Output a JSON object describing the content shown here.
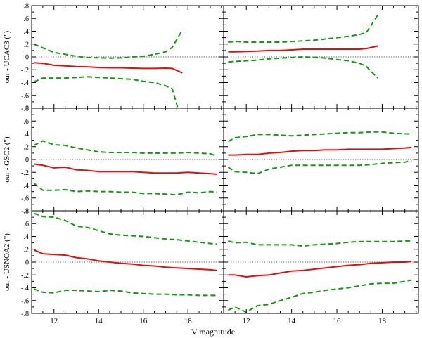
{
  "figure": {
    "xlabel": "V magnitude",
    "ylabel_unit_symbol": "(\")"
  },
  "colors": {
    "median_line": "#dd1111",
    "dispersion_line": "#119911",
    "zero_line": "#555555",
    "frame": "#000000"
  },
  "chart_data": [
    {
      "type": "line",
      "row": 0,
      "col": 0,
      "ylabel": "our - UCAC3 (\")",
      "xlim": [
        11,
        19.6
      ],
      "ylim": [
        -0.8,
        0.8
      ],
      "xticks": [
        12,
        14,
        16,
        18
      ],
      "yticks": [
        -0.8,
        -0.6,
        -0.4,
        -0.2,
        0,
        0.2,
        0.4,
        0.6,
        0.8
      ],
      "series": [
        {
          "role": "median",
          "style": "solid",
          "x": [
            11.1,
            11.5,
            12.0,
            12.5,
            13.0,
            13.5,
            14.0,
            14.5,
            15.0,
            15.5,
            16.0,
            16.5,
            17.0,
            17.3,
            17.75
          ],
          "y": [
            -0.09,
            -0.1,
            -0.13,
            -0.14,
            -0.15,
            -0.155,
            -0.165,
            -0.17,
            -0.17,
            -0.175,
            -0.18,
            -0.18,
            -0.175,
            -0.18,
            -0.25
          ]
        },
        {
          "role": "upper",
          "style": "dashed",
          "x": [
            11.1,
            11.5,
            12.0,
            12.5,
            13.0,
            13.5,
            14.0,
            14.5,
            15.0,
            15.5,
            16.0,
            16.5,
            17.0,
            17.3,
            17.75
          ],
          "y": [
            0.2,
            0.14,
            0.07,
            0.04,
            0.01,
            -0.01,
            -0.015,
            -0.02,
            -0.015,
            0.0,
            0.01,
            0.04,
            0.08,
            0.15,
            0.42
          ]
        },
        {
          "role": "lower",
          "style": "dashed",
          "x": [
            11.1,
            11.5,
            12.0,
            12.5,
            13.0,
            13.5,
            14.0,
            14.5,
            15.0,
            15.5,
            16.0,
            16.5,
            17.0,
            17.3,
            17.55
          ],
          "y": [
            -0.39,
            -0.33,
            -0.33,
            -0.33,
            -0.32,
            -0.31,
            -0.32,
            -0.33,
            -0.34,
            -0.35,
            -0.38,
            -0.4,
            -0.45,
            -0.5,
            -0.8
          ]
        }
      ]
    },
    {
      "type": "line",
      "row": 0,
      "col": 1,
      "xlim": [
        11,
        19.6
      ],
      "ylim": [
        -0.8,
        0.8
      ],
      "xticks": [
        12,
        14,
        16,
        18
      ],
      "series": [
        {
          "role": "median",
          "style": "solid",
          "x": [
            11.2,
            11.5,
            12.0,
            12.5,
            13.0,
            13.5,
            14.0,
            14.5,
            15.0,
            15.5,
            16.0,
            16.5,
            17.0,
            17.3,
            17.8
          ],
          "y": [
            0.08,
            0.08,
            0.085,
            0.09,
            0.1,
            0.1,
            0.11,
            0.12,
            0.12,
            0.12,
            0.12,
            0.12,
            0.12,
            0.13,
            0.17
          ]
        },
        {
          "role": "upper",
          "style": "dashed",
          "x": [
            11.2,
            11.5,
            12.0,
            12.5,
            13.0,
            13.5,
            14.0,
            14.5,
            15.0,
            15.5,
            16.0,
            16.5,
            17.0,
            17.3,
            17.8
          ],
          "y": [
            0.23,
            0.24,
            0.23,
            0.23,
            0.23,
            0.23,
            0.24,
            0.25,
            0.26,
            0.28,
            0.3,
            0.32,
            0.35,
            0.38,
            0.65
          ]
        },
        {
          "role": "lower",
          "style": "dashed",
          "x": [
            11.2,
            11.5,
            12.0,
            12.5,
            13.0,
            13.5,
            14.0,
            14.5,
            15.0,
            15.5,
            16.0,
            16.5,
            17.0,
            17.3,
            17.8
          ],
          "y": [
            -0.08,
            -0.07,
            -0.06,
            -0.05,
            -0.03,
            -0.02,
            -0.01,
            0.0,
            -0.005,
            -0.02,
            -0.04,
            -0.06,
            -0.1,
            -0.15,
            -0.33
          ]
        }
      ]
    },
    {
      "type": "line",
      "row": 1,
      "col": 0,
      "ylabel": "our - GSC2 (\")",
      "xlim": [
        11,
        19.6
      ],
      "ylim": [
        -0.8,
        0.8
      ],
      "xticks": [
        12,
        14,
        16,
        18
      ],
      "yticks": [
        -0.8,
        -0.6,
        -0.4,
        -0.2,
        0,
        0.2,
        0.4,
        0.6,
        0.8
      ],
      "series": [
        {
          "role": "median",
          "style": "solid",
          "x": [
            11.1,
            11.5,
            12.0,
            12.5,
            13.0,
            13.5,
            14.0,
            14.5,
            15.0,
            15.5,
            16.0,
            16.5,
            17.0,
            17.5,
            18.0,
            18.5,
            19.0,
            19.3
          ],
          "y": [
            -0.07,
            -0.09,
            -0.13,
            -0.12,
            -0.16,
            -0.17,
            -0.19,
            -0.19,
            -0.19,
            -0.19,
            -0.2,
            -0.21,
            -0.21,
            -0.21,
            -0.2,
            -0.21,
            -0.22,
            -0.23
          ]
        },
        {
          "role": "upper",
          "style": "dashed",
          "x": [
            11.1,
            11.5,
            12.0,
            12.5,
            13.0,
            13.5,
            14.0,
            14.5,
            15.0,
            15.5,
            16.0,
            16.5,
            17.0,
            17.5,
            18.0,
            18.5,
            19.0,
            19.3
          ],
          "y": [
            0.22,
            0.29,
            0.23,
            0.22,
            0.18,
            0.15,
            0.12,
            0.11,
            0.11,
            0.11,
            0.1,
            0.1,
            0.1,
            0.1,
            0.11,
            0.1,
            0.09,
            0.05
          ]
        },
        {
          "role": "lower",
          "style": "dashed",
          "x": [
            11.1,
            11.5,
            12.0,
            12.5,
            13.0,
            13.5,
            14.0,
            14.5,
            15.0,
            15.5,
            16.0,
            16.5,
            17.0,
            17.5,
            18.0,
            18.5,
            19.0,
            19.3
          ],
          "y": [
            -0.37,
            -0.48,
            -0.48,
            -0.47,
            -0.5,
            -0.49,
            -0.5,
            -0.5,
            -0.51,
            -0.51,
            -0.53,
            -0.53,
            -0.54,
            -0.55,
            -0.51,
            -0.52,
            -0.5,
            -0.51
          ]
        }
      ]
    },
    {
      "type": "line",
      "row": 1,
      "col": 1,
      "xlim": [
        11,
        19.6
      ],
      "ylim": [
        -0.8,
        0.8
      ],
      "xticks": [
        12,
        14,
        16,
        18
      ],
      "series": [
        {
          "role": "median",
          "style": "solid",
          "x": [
            11.2,
            11.5,
            12.0,
            12.5,
            13.0,
            13.5,
            14.0,
            14.5,
            15.0,
            15.5,
            16.0,
            16.5,
            17.0,
            17.5,
            18.0,
            18.5,
            19.0,
            19.3
          ],
          "y": [
            0.07,
            0.07,
            0.08,
            0.08,
            0.1,
            0.11,
            0.13,
            0.14,
            0.14,
            0.15,
            0.15,
            0.16,
            0.16,
            0.16,
            0.16,
            0.17,
            0.18,
            0.19
          ]
        },
        {
          "role": "upper",
          "style": "dashed",
          "x": [
            11.2,
            11.5,
            12.0,
            12.5,
            13.0,
            13.5,
            14.0,
            14.5,
            15.0,
            15.5,
            16.0,
            16.5,
            17.0,
            17.5,
            18.0,
            18.5,
            19.0,
            19.3
          ],
          "y": [
            0.28,
            0.34,
            0.36,
            0.39,
            0.39,
            0.38,
            0.37,
            0.38,
            0.39,
            0.4,
            0.41,
            0.42,
            0.42,
            0.43,
            0.43,
            0.41,
            0.4,
            0.4
          ]
        },
        {
          "role": "lower",
          "style": "dashed",
          "x": [
            11.2,
            11.5,
            12.0,
            12.5,
            13.0,
            13.5,
            14.0,
            14.5,
            15.0,
            15.5,
            16.0,
            16.5,
            17.0,
            17.5,
            18.0,
            18.5,
            19.0,
            19.3
          ],
          "y": [
            -0.12,
            -0.19,
            -0.2,
            -0.22,
            -0.15,
            -0.12,
            -0.09,
            -0.09,
            -0.09,
            -0.09,
            -0.09,
            -0.09,
            -0.09,
            -0.08,
            -0.06,
            -0.05,
            -0.04,
            -0.02
          ]
        }
      ]
    },
    {
      "type": "line",
      "row": 2,
      "col": 0,
      "ylabel": "our - USNOA2 (\")",
      "xlim": [
        11,
        19.6
      ],
      "ylim": [
        -0.8,
        0.8
      ],
      "xticks": [
        12,
        14,
        16,
        18
      ],
      "yticks": [
        -0.8,
        -0.6,
        -0.4,
        -0.2,
        0,
        0.2,
        0.4,
        0.6,
        0.8
      ],
      "series": [
        {
          "role": "median",
          "style": "solid",
          "x": [
            11.1,
            11.5,
            12.0,
            12.5,
            13.0,
            13.5,
            14.0,
            14.5,
            15.0,
            15.5,
            16.0,
            16.5,
            17.0,
            17.5,
            18.0,
            18.5,
            19.0,
            19.3
          ],
          "y": [
            0.19,
            0.13,
            0.12,
            0.11,
            0.07,
            0.05,
            0.02,
            0.0,
            -0.02,
            -0.03,
            -0.05,
            -0.06,
            -0.08,
            -0.09,
            -0.1,
            -0.11,
            -0.12,
            -0.13
          ]
        },
        {
          "role": "upper",
          "style": "dashed",
          "x": [
            11.1,
            11.5,
            12.0,
            12.5,
            13.0,
            13.5,
            14.0,
            14.5,
            15.0,
            15.5,
            16.0,
            16.5,
            17.0,
            17.5,
            18.0,
            18.5,
            19.0,
            19.3
          ],
          "y": [
            0.76,
            0.71,
            0.7,
            0.65,
            0.56,
            0.54,
            0.49,
            0.44,
            0.42,
            0.41,
            0.4,
            0.38,
            0.36,
            0.35,
            0.33,
            0.31,
            0.29,
            0.28
          ]
        },
        {
          "role": "lower",
          "style": "dashed",
          "x": [
            11.1,
            11.5,
            12.0,
            12.5,
            13.0,
            13.5,
            14.0,
            14.5,
            15.0,
            15.5,
            16.0,
            16.5,
            17.0,
            17.5,
            18.0,
            18.5,
            19.0,
            19.3
          ],
          "y": [
            -0.42,
            -0.47,
            -0.48,
            -0.44,
            -0.44,
            -0.45,
            -0.46,
            -0.44,
            -0.45,
            -0.48,
            -0.49,
            -0.5,
            -0.5,
            -0.51,
            -0.51,
            -0.52,
            -0.52,
            -0.52
          ]
        }
      ]
    },
    {
      "type": "line",
      "row": 2,
      "col": 1,
      "xlim": [
        11,
        19.6
      ],
      "ylim": [
        -0.8,
        0.8
      ],
      "xticks": [
        12,
        14,
        16,
        18
      ],
      "series": [
        {
          "role": "median",
          "style": "solid",
          "x": [
            11.2,
            11.5,
            12.0,
            12.5,
            13.0,
            13.5,
            14.0,
            14.5,
            15.0,
            15.5,
            16.0,
            16.5,
            17.0,
            17.5,
            18.0,
            18.5,
            19.0,
            19.3
          ],
          "y": [
            -0.2,
            -0.2,
            -0.23,
            -0.21,
            -0.2,
            -0.17,
            -0.14,
            -0.13,
            -0.11,
            -0.09,
            -0.07,
            -0.05,
            -0.04,
            -0.02,
            -0.01,
            0.0,
            0.0,
            0.01
          ]
        },
        {
          "role": "upper",
          "style": "dashed",
          "x": [
            11.2,
            11.5,
            12.0,
            12.5,
            13.0,
            13.5,
            14.0,
            14.5,
            15.0,
            15.5,
            16.0,
            16.5,
            17.0,
            17.5,
            18.0,
            18.5,
            19.0,
            19.3
          ],
          "y": [
            0.33,
            0.3,
            0.31,
            0.27,
            0.27,
            0.27,
            0.27,
            0.25,
            0.27,
            0.28,
            0.29,
            0.31,
            0.32,
            0.32,
            0.32,
            0.32,
            0.33,
            0.33
          ]
        },
        {
          "role": "lower",
          "style": "dashed",
          "x": [
            11.2,
            11.5,
            12.0,
            12.5,
            13.0,
            13.5,
            14.0,
            14.5,
            15.0,
            15.5,
            16.0,
            16.5,
            17.0,
            17.5,
            18.0,
            18.5,
            19.0,
            19.3
          ],
          "y": [
            -0.75,
            -0.7,
            -0.78,
            -0.68,
            -0.66,
            -0.6,
            -0.55,
            -0.49,
            -0.47,
            -0.44,
            -0.42,
            -0.4,
            -0.37,
            -0.34,
            -0.33,
            -0.33,
            -0.3,
            -0.28
          ]
        }
      ]
    }
  ]
}
